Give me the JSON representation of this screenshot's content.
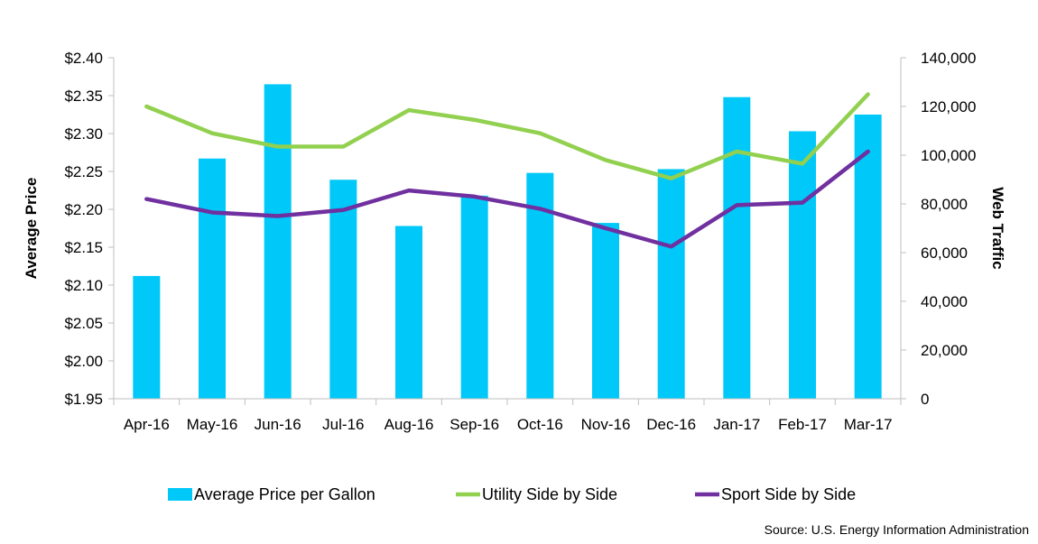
{
  "chart_data": {
    "type": "bar",
    "categories": [
      "Apr-16",
      "May-16",
      "Jun-16",
      "Jul-16",
      "Aug-16",
      "Sep-16",
      "Oct-16",
      "Nov-16",
      "Dec-16",
      "Jan-17",
      "Feb-17",
      "Mar-17"
    ],
    "y_left": {
      "label": "Average Price",
      "range": [
        1.95,
        2.4
      ],
      "ticks": [
        "$1.95",
        "$2.00",
        "$2.05",
        "$2.10",
        "$2.15",
        "$2.20",
        "$2.25",
        "$2.30",
        "$2.35",
        "$2.40"
      ]
    },
    "y_right": {
      "label": "Web Traffic",
      "range": [
        0,
        140000
      ],
      "ticks": [
        "0",
        "20,000",
        "40,000",
        "60,000",
        "80,000",
        "100,000",
        "120,000",
        "140,000"
      ]
    },
    "series": [
      {
        "name": "Average Price per Gallon",
        "type": "bar",
        "axis": "left",
        "color": "#00C8F8",
        "values": [
          2.112,
          2.267,
          2.365,
          2.239,
          2.178,
          2.218,
          2.248,
          2.182,
          2.253,
          2.348,
          2.303,
          2.325
        ]
      },
      {
        "name": "Utility Side by Side",
        "type": "line",
        "axis": "right",
        "color": "#92D050",
        "values": [
          120000,
          109000,
          103500,
          103500,
          118500,
          114500,
          109000,
          98000,
          90500,
          101500,
          96500,
          125000
        ]
      },
      {
        "name": "Sport Side by Side",
        "type": "line",
        "axis": "right",
        "color": "#7030A0",
        "values": [
          82000,
          76500,
          75000,
          77500,
          85500,
          83000,
          78000,
          70000,
          62500,
          79500,
          80500,
          101500
        ]
      }
    ],
    "grid": false,
    "legend_position": "bottom",
    "source": "Source: U.S. Energy Information Administration"
  }
}
